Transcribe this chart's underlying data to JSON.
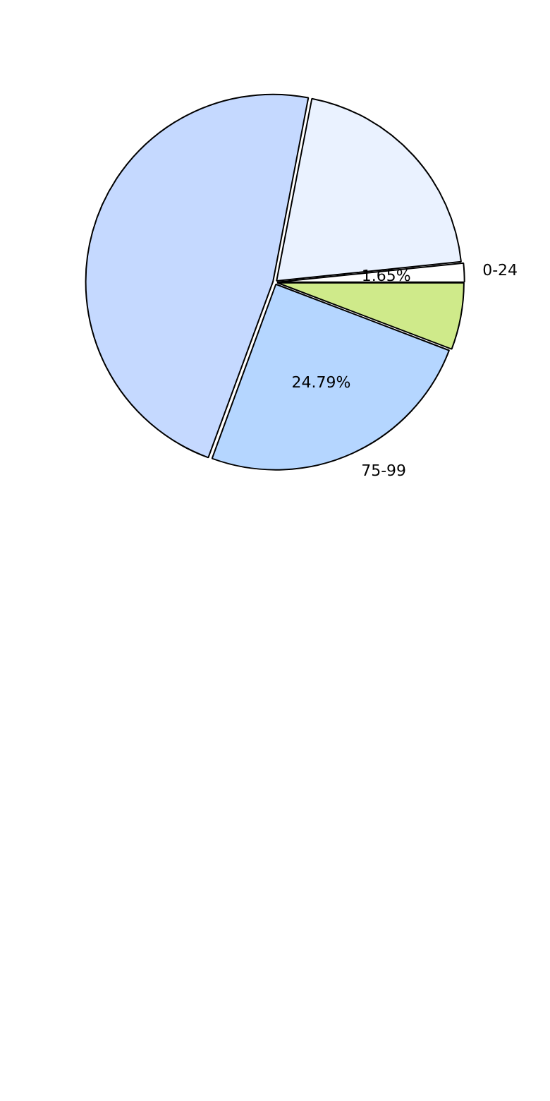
{
  "chart_data": {
    "type": "pie",
    "categories": [
      "0-24",
      null,
      null,
      "75-99",
      null
    ],
    "values": [
      1.65,
      20.3,
      47.46,
      24.79,
      5.8
    ],
    "colors": [
      "#ffffff",
      "#eaf2ff",
      "#c5d9ff",
      "#b5d6ff",
      "#cfea8a"
    ],
    "value_labels": [
      "1.65%",
      null,
      null,
      "24.79%",
      null
    ],
    "legend": false
  }
}
